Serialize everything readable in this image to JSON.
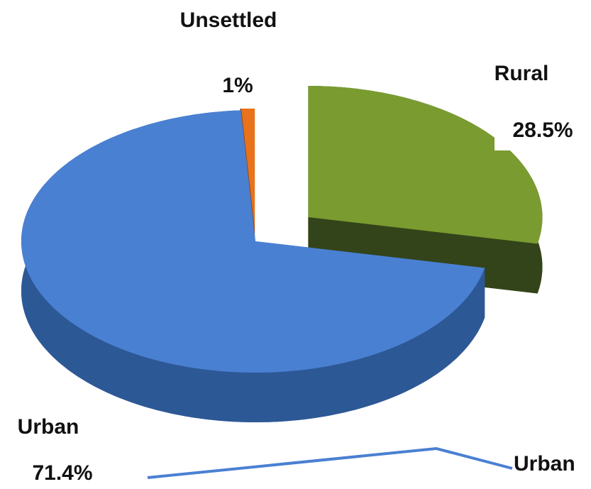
{
  "chart_data": {
    "type": "pie",
    "categories": [
      "Rural",
      "Urban",
      "Unsettled"
    ],
    "values": [
      28.5,
      71.4,
      1
    ],
    "value_labels": [
      "28.5%",
      "71.4%",
      "1%"
    ],
    "colors": [
      "#7a9b30",
      "#4a80d2",
      "#e8731c"
    ],
    "side_colors": [
      "#33441a",
      "#2d5896",
      "#9a4510"
    ]
  }
}
